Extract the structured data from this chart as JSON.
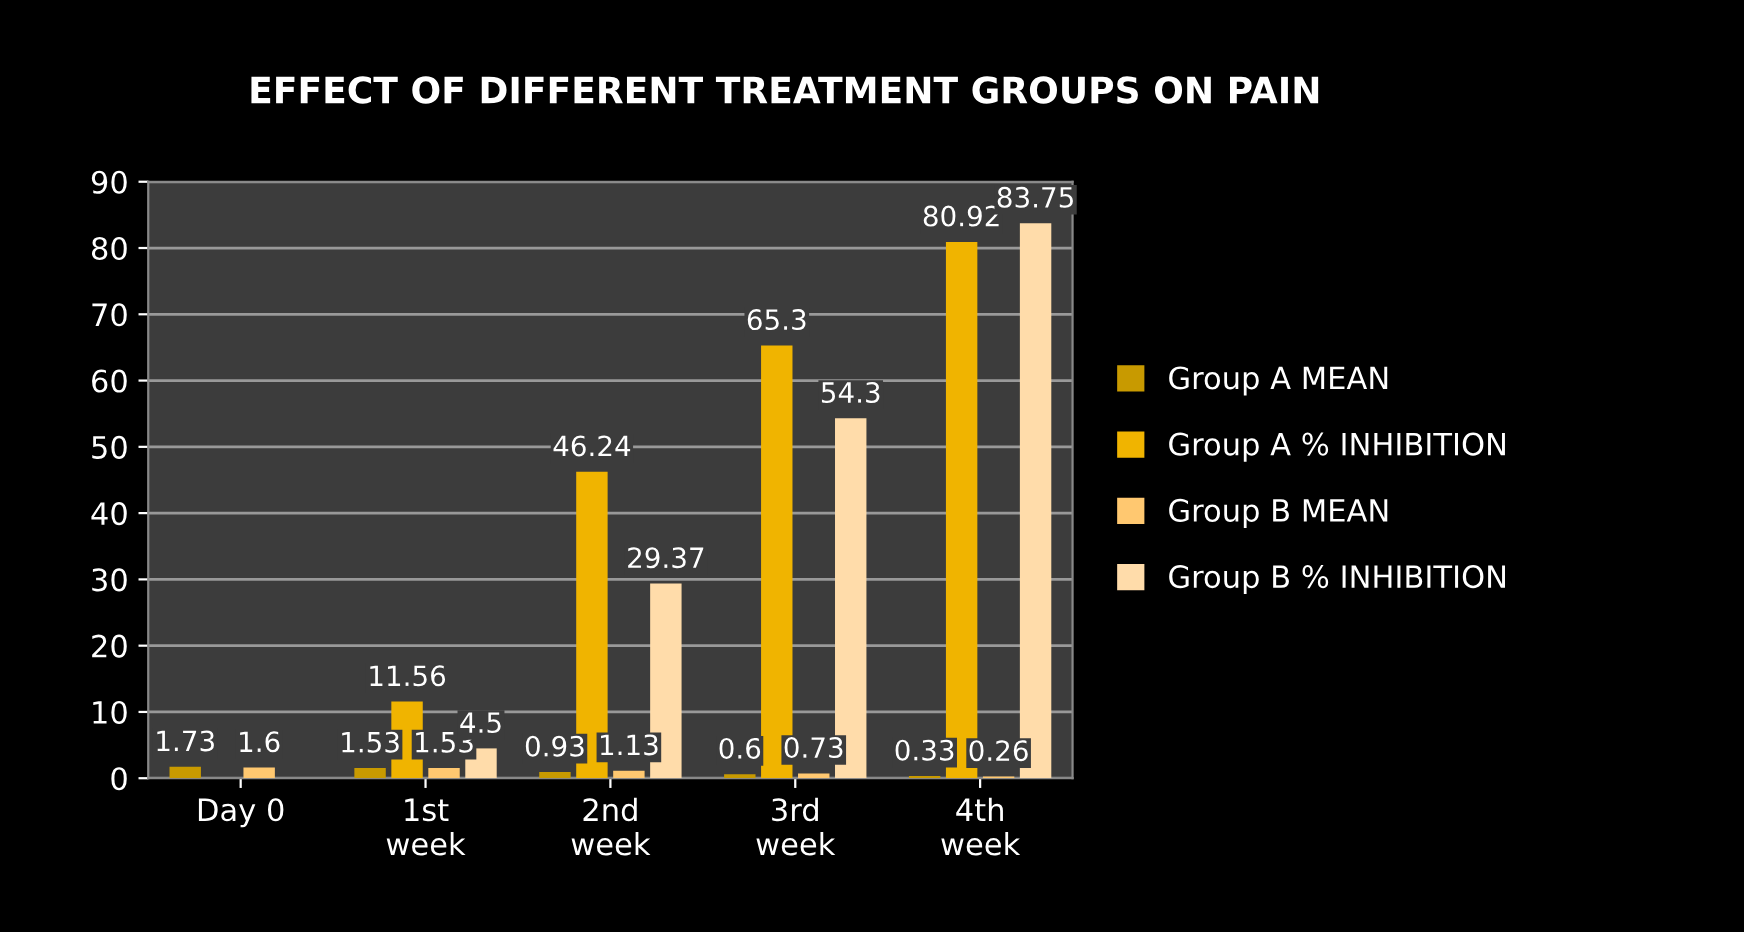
{
  "chart_data": {
    "type": "bar",
    "title": "EFFECT OF DIFFERENT TREATMENT GROUPS ON PAIN",
    "categories": [
      "Day 0",
      "1st\nweek",
      "2nd\nweek",
      "3rd\nweek",
      "4th\nweek"
    ],
    "series": [
      {
        "name": "Group A MEAN",
        "color": "#c89a00",
        "values": [
          1.73,
          1.53,
          0.93,
          0.6,
          0.33
        ]
      },
      {
        "name": "Group A % INHIBITION",
        "color": "#f0b400",
        "values": [
          null,
          11.56,
          46.24,
          65.3,
          80.92
        ]
      },
      {
        "name": "Group B MEAN",
        "color": "#ffc870",
        "values": [
          1.6,
          1.53,
          1.13,
          0.73,
          0.26
        ]
      },
      {
        "name": "Group B % INHIBITION",
        "color": "#ffdcaa",
        "values": [
          null,
          4.5,
          29.37,
          54.3,
          83.75
        ]
      }
    ],
    "ylim": [
      0,
      90
    ],
    "yticks": [
      0,
      10,
      20,
      30,
      40,
      50,
      60,
      70,
      80,
      90
    ],
    "grid": "y",
    "legend": "right",
    "data_labels": true
  }
}
